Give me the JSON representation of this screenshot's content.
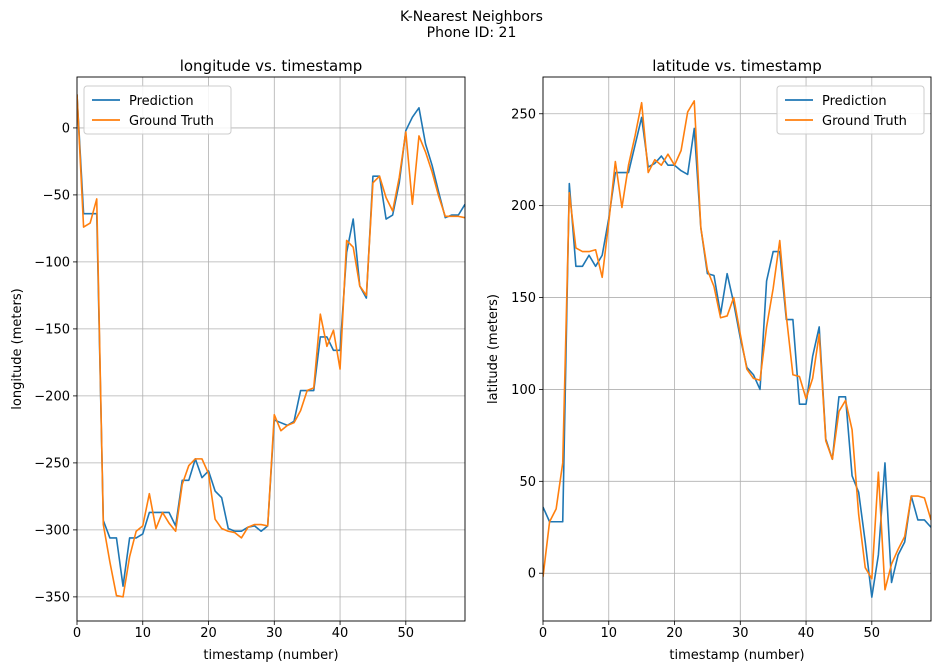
{
  "figure": {
    "title_line1": "K-Nearest Neighbors",
    "title_line2": "Phone ID: 21"
  },
  "colors": {
    "prediction": "#1f77b4",
    "ground_truth": "#ff7f0e",
    "grid": "#b0b0b0"
  },
  "chart_data": [
    {
      "type": "line",
      "title": "longitude vs. timestamp",
      "xlabel": "timestamp (number)",
      "ylabel": "longitude (meters)",
      "xlim": [
        0,
        59
      ],
      "ylim": [
        -368,
        38
      ],
      "xticks": [
        0,
        10,
        20,
        30,
        40,
        50
      ],
      "yticks": [
        0,
        -50,
        -100,
        -150,
        -200,
        -250,
        -300,
        -350
      ],
      "grid": true,
      "legend": "upper-left",
      "x": [
        0,
        1,
        2,
        3,
        4,
        5,
        6,
        7,
        8,
        9,
        10,
        11,
        12,
        13,
        14,
        15,
        16,
        17,
        18,
        19,
        20,
        21,
        22,
        23,
        24,
        25,
        26,
        27,
        28,
        29,
        30,
        31,
        32,
        33,
        34,
        35,
        36,
        37,
        38,
        39,
        40,
        41,
        42,
        43,
        44,
        45,
        46,
        47,
        48,
        49,
        50,
        51,
        52,
        53,
        54,
        55,
        56,
        57,
        58,
        59
      ],
      "series": [
        {
          "name": "Prediction",
          "values": [
            25,
            -64,
            -64,
            -64,
            -293,
            -306,
            -306,
            -342,
            -306,
            -306,
            -303,
            -287,
            -287,
            -287,
            -287,
            -297,
            -263,
            -263,
            -247,
            -261,
            -256,
            -271,
            -276,
            -299,
            -301,
            -301,
            -298,
            -297,
            -301,
            -297,
            -218,
            -220,
            -222,
            -219,
            -196,
            -196,
            -196,
            -156,
            -156,
            -166,
            -166,
            -93,
            -68,
            -118,
            -127,
            -36,
            -36,
            -68,
            -65,
            -41,
            -2,
            8,
            15,
            -12,
            -28,
            -48,
            -67,
            -65,
            -65,
            -57
          ]
        },
        {
          "name": "Ground Truth",
          "values": [
            25,
            -74,
            -71,
            -53,
            -296,
            -324,
            -349,
            -350,
            -320,
            -301,
            -297,
            -273,
            -299,
            -287,
            -295,
            -301,
            -266,
            -252,
            -247,
            -247,
            -258,
            -292,
            -299,
            -301,
            -302,
            -306,
            -298,
            -296,
            -296,
            -297,
            -214,
            -226,
            -222,
            -220,
            -211,
            -196,
            -194,
            -139,
            -163,
            -151,
            -180,
            -84,
            -89,
            -118,
            -125,
            -41,
            -36,
            -52,
            -62,
            -37,
            -3,
            -57,
            -6,
            -18,
            -33,
            -51,
            -66,
            -66,
            -66,
            -67
          ]
        }
      ]
    },
    {
      "type": "line",
      "title": "latitude vs. timestamp",
      "xlabel": "timestamp (number)",
      "ylabel": "latitude (meters)",
      "xlim": [
        0,
        59
      ],
      "ylim": [
        -26,
        270
      ],
      "xticks": [
        0,
        10,
        20,
        30,
        40,
        50
      ],
      "yticks": [
        0,
        50,
        100,
        150,
        200,
        250
      ],
      "grid": true,
      "legend": "upper-right",
      "x": [
        0,
        1,
        2,
        3,
        4,
        5,
        6,
        7,
        8,
        9,
        10,
        11,
        12,
        13,
        14,
        15,
        16,
        17,
        18,
        19,
        20,
        21,
        22,
        23,
        24,
        25,
        26,
        27,
        28,
        29,
        30,
        31,
        32,
        33,
        34,
        35,
        36,
        37,
        38,
        39,
        40,
        41,
        42,
        43,
        44,
        45,
        46,
        47,
        48,
        49,
        50,
        51,
        52,
        53,
        54,
        55,
        56,
        57,
        58,
        59
      ],
      "series": [
        {
          "name": "Prediction",
          "values": [
            36,
            28,
            28,
            28,
            212,
            167,
            167,
            173,
            167,
            173,
            193,
            218,
            218,
            218,
            233,
            248,
            221,
            223,
            227,
            222,
            222,
            219,
            217,
            242,
            188,
            163,
            162,
            141,
            163,
            147,
            128,
            112,
            108,
            100,
            159,
            175,
            175,
            138,
            138,
            92,
            92,
            118,
            134,
            73,
            62,
            96,
            96,
            53,
            44,
            17,
            -13,
            10,
            60,
            -5,
            10,
            17,
            42,
            29,
            29,
            25
          ]
        },
        {
          "name": "Ground Truth",
          "values": [
            -2,
            28,
            35,
            60,
            207,
            177,
            175,
            175,
            176,
            161,
            191,
            224,
            199,
            222,
            238,
            256,
            218,
            225,
            222,
            228,
            222,
            230,
            251,
            257,
            188,
            165,
            156,
            139,
            140,
            150,
            130,
            111,
            106,
            105,
            134,
            155,
            181,
            140,
            108,
            107,
            95,
            106,
            130,
            72,
            62,
            88,
            94,
            78,
            32,
            3,
            -3,
            55,
            -9,
            5,
            13,
            20,
            42,
            42,
            41,
            29
          ]
        }
      ]
    }
  ]
}
